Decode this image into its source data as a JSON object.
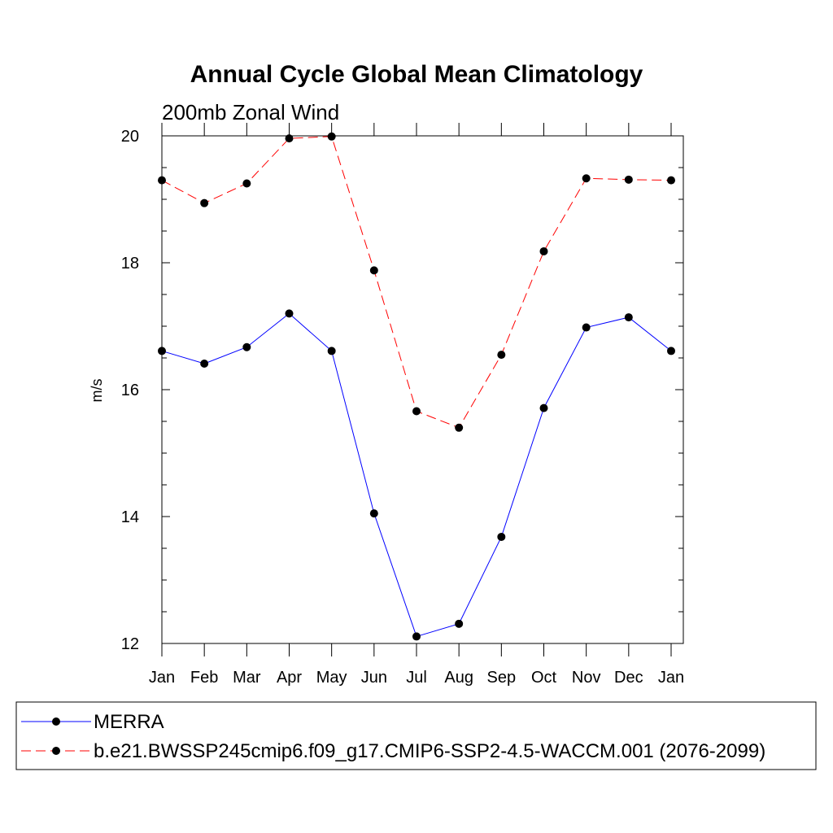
{
  "chart_data": {
    "type": "line",
    "title": "Annual Cycle Global Mean Climatology",
    "subtitle": "200mb Zonal Wind",
    "xlabel": "",
    "ylabel": "m/s",
    "ylim": [
      12,
      20
    ],
    "yticks": [
      "12",
      "14",
      "16",
      "18",
      "20"
    ],
    "categories": [
      "Jan",
      "Feb",
      "Mar",
      "Apr",
      "May",
      "Jun",
      "Jul",
      "Aug",
      "Sep",
      "Oct",
      "Nov",
      "Dec",
      "Jan"
    ],
    "series": [
      {
        "name": "MERRA",
        "color": "#0000ff",
        "dashed": false,
        "values": [
          16.61,
          16.41,
          16.67,
          17.2,
          16.61,
          14.05,
          12.11,
          12.31,
          13.68,
          15.71,
          16.98,
          17.14,
          16.61
        ]
      },
      {
        "name": "b.e21.BWSSP245cmip6.f09_g17.CMIP6-SSP2-4.5-WACCM.001 (2076-2099)",
        "color": "#ff0000",
        "dashed": true,
        "values": [
          19.3,
          18.94,
          19.25,
          19.96,
          19.99,
          17.88,
          15.66,
          15.4,
          16.55,
          18.18,
          19.33,
          19.31,
          19.3
        ]
      }
    ],
    "legend_position": "bottom"
  }
}
